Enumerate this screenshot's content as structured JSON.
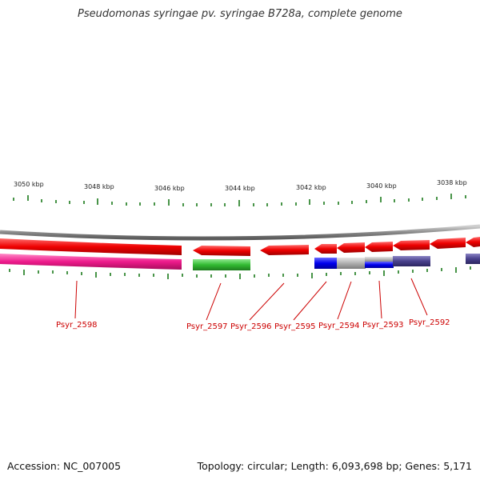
{
  "title": "Pseudomonas syringae pv. syringae B728a, complete genome",
  "footer": {
    "accession": "Accession: NC_007005",
    "topology": "Topology: circular; Length: 6,093,698 bp; Genes: 5,171"
  },
  "scale": {
    "ticks": [
      {
        "kbp": 3050,
        "label": "3050 kbp"
      },
      {
        "kbp": 3048,
        "label": "3048 kbp"
      },
      {
        "kbp": 3046,
        "label": "3046 kbp"
      },
      {
        "kbp": 3044,
        "label": "3044 kbp"
      },
      {
        "kbp": 3042,
        "label": "3042 kbp"
      },
      {
        "kbp": 3040,
        "label": "3040 kbp"
      },
      {
        "kbp": 3038,
        "label": "3038 kbp"
      }
    ]
  },
  "genes": {
    "labels": [
      {
        "id": "Psyr_2598",
        "text": "Psyr_2598"
      },
      {
        "id": "Psyr_2597",
        "text": "Psyr_2597"
      },
      {
        "id": "Psyr_2596",
        "text": "Psyr_2596"
      },
      {
        "id": "Psyr_2595",
        "text": "Psyr_2595"
      },
      {
        "id": "Psyr_2594",
        "text": "Psyr_2594"
      },
      {
        "id": "Psyr_2593",
        "text": "Psyr_2593"
      },
      {
        "id": "Psyr_2592",
        "text": "Psyr_2592"
      }
    ]
  },
  "colors": {
    "forward_strand_red": "#ee0000",
    "reverse_pink": "#ee1b8c",
    "green": "#33bb33",
    "blue": "#0000ee",
    "gray": "#b0b0b0",
    "slate": "#48408c",
    "label_red": "#cc0000",
    "tick_green": "#1a7a1a"
  }
}
